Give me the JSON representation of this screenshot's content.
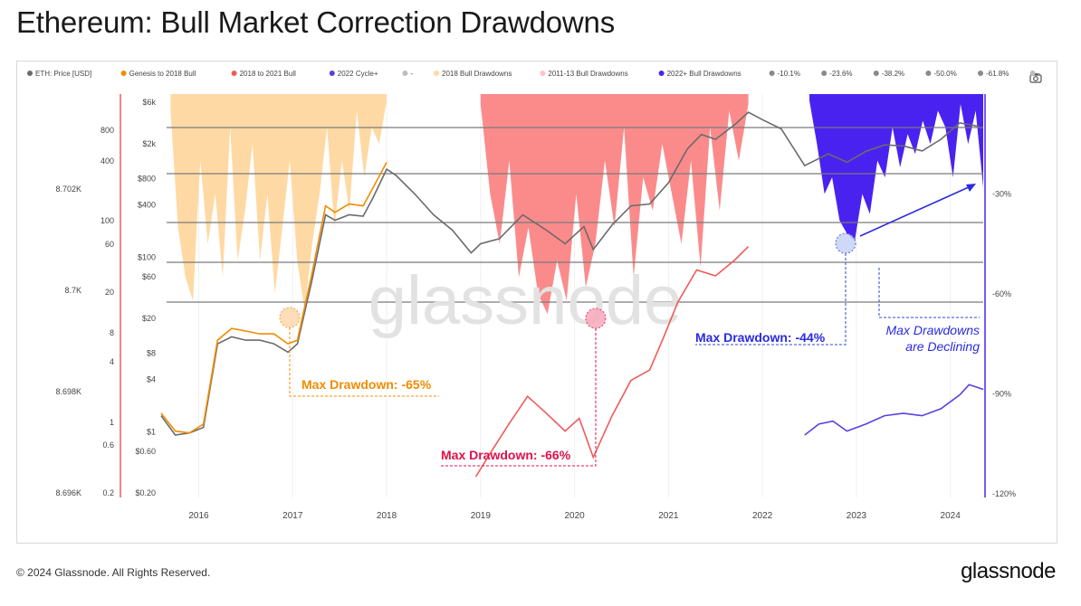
{
  "title": "Ethereum: Bull Market Correction Drawdowns",
  "footer": {
    "copyright": "© 2024 Glassnode. All Rights Reserved.",
    "logo": "glassnode"
  },
  "watermark": "glassnode",
  "icons": {
    "camera": "camera-icon"
  },
  "chart_data": {
    "type": "line",
    "title": "Ethereum: Bull Market Correction Drawdowns",
    "legend": [
      {
        "label": "ETH: Price [USD]",
        "color": "#6b6b6b"
      },
      {
        "label": "Genesis to 2018 Bull",
        "color": "#f08c00"
      },
      {
        "label": "2018 to 2021 Bull",
        "color": "#f05a5a"
      },
      {
        "label": "2022 Cycle+",
        "color": "#5b3fe0"
      },
      {
        "label": "-",
        "color": "#bdbdbd"
      },
      {
        "label": "2018 Bull Drawdowns",
        "color": "#ffd9a3"
      },
      {
        "label": "2011-13 Bull Drawdowns",
        "color": "#ffc2c2"
      },
      {
        "label": "2022+ Bull Drawdowns",
        "color": "#4a22f0"
      },
      {
        "label": "-10.1%",
        "color": "#8a8a8a"
      },
      {
        "label": "-23.6%",
        "color": "#8a8a8a"
      },
      {
        "label": "-38.2%",
        "color": "#8a8a8a"
      },
      {
        "label": "-50.0%",
        "color": "#8a8a8a"
      },
      {
        "label": "-61.8%",
        "color": "#8a8a8a"
      },
      {
        "label": "-",
        "color": "#bdbdbd"
      }
    ],
    "legend_placement": "top",
    "x_axis": {
      "ticks": [
        "2016",
        "2017",
        "2018",
        "2019",
        "2020",
        "2021",
        "2022",
        "2023",
        "2024"
      ],
      "range": [
        2015.6,
        2024.35
      ]
    },
    "price_axis": {
      "scale": "log",
      "ticks": [
        "$6k",
        "$2k",
        "$800",
        "$400",
        "$100",
        "$60",
        "$20",
        "$8",
        "$4",
        "$1",
        "$0.60",
        "$0.20"
      ],
      "range": [
        0.2,
        6000
      ]
    },
    "cycle_axis": {
      "scale": "log",
      "ticks": [
        "800",
        "400",
        "100",
        "60",
        "20",
        "8",
        "4",
        "1",
        "0.6",
        "0.2"
      ]
    },
    "extra_axis": {
      "ticks": [
        "8.702K",
        "8.7K",
        "8.698K",
        "8.696K"
      ]
    },
    "drawdown_axis": {
      "ticks": [
        "-30%",
        "-60%",
        "-90%",
        "-120%"
      ],
      "range": [
        0,
        -120
      ]
    },
    "fib_levels": [
      -10.1,
      -23.6,
      -38.2,
      -50.0,
      -61.8
    ],
    "series": [
      {
        "name": "ETH: Price [USD]",
        "x": [
          2015.6,
          2015.75,
          2015.9,
          2016.05,
          2016.2,
          2016.35,
          2016.5,
          2016.65,
          2016.8,
          2016.95,
          2017.05,
          2017.2,
          2017.35,
          2017.45,
          2017.6,
          2017.75,
          2017.85,
          2018.0,
          2018.1,
          2018.3,
          2018.5,
          2018.7,
          2018.9,
          2019.0,
          2019.2,
          2019.45,
          2019.7,
          2019.9,
          2020.1,
          2020.2,
          2020.4,
          2020.6,
          2020.8,
          2021.0,
          2021.2,
          2021.35,
          2021.5,
          2021.7,
          2021.85,
          2022.0,
          2022.2,
          2022.45,
          2022.7,
          2022.9,
          2023.1,
          2023.3,
          2023.5,
          2023.7,
          2023.9,
          2024.1,
          2024.3
        ],
        "values": [
          1.5,
          0.9,
          0.95,
          1.1,
          10,
          12,
          11,
          11,
          10,
          8,
          10,
          50,
          300,
          260,
          300,
          290,
          460,
          1000,
          850,
          520,
          300,
          200,
          110,
          140,
          160,
          300,
          200,
          140,
          220,
          120,
          230,
          380,
          400,
          700,
          1700,
          2500,
          2200,
          3200,
          4500,
          3700,
          2900,
          1100,
          1500,
          1200,
          1600,
          1900,
          1850,
          1620,
          2200,
          3400,
          3100
        ]
      },
      {
        "name": "Genesis to 2018 Bull",
        "x": [
          2015.6,
          2015.75,
          2015.9,
          2016.05,
          2016.2,
          2016.35,
          2016.5,
          2016.65,
          2016.8,
          2016.95,
          2017.05,
          2017.2,
          2017.35,
          2017.45,
          2017.6,
          2017.75,
          2017.85,
          2018.0
        ],
        "values": [
          1.6,
          1.0,
          0.95,
          1.2,
          11,
          15,
          14,
          13,
          13,
          10,
          11,
          60,
          380,
          320,
          400,
          380,
          600,
          1200
        ]
      },
      {
        "name": "2018 to 2021 Bull",
        "x": [
          2018.95,
          2019.1,
          2019.3,
          2019.5,
          2019.7,
          2019.9,
          2020.05,
          2020.2,
          2020.4,
          2020.6,
          2020.8,
          2020.95,
          2021.1,
          2021.3,
          2021.5,
          2021.7,
          2021.85
        ],
        "values": [
          0.3,
          0.55,
          1.2,
          2.5,
          1.6,
          1.0,
          1.4,
          0.5,
          1.5,
          3.8,
          5,
          12,
          30,
          70,
          60,
          90,
          130
        ]
      },
      {
        "name": "2022 Cycle+",
        "x": [
          2022.45,
          2022.6,
          2022.75,
          2022.9,
          2023.1,
          2023.3,
          2023.5,
          2023.7,
          2023.9,
          2024.1,
          2024.2,
          2024.35
        ],
        "values": [
          0.9,
          1.2,
          1.3,
          1.0,
          1.2,
          1.5,
          1.6,
          1.5,
          1.8,
          2.6,
          3.4,
          3.0
        ]
      }
    ],
    "annotations": [
      {
        "text": "Max Drawdown: -65%",
        "x": 2016.95,
        "value": -65,
        "color": "#f08c00"
      },
      {
        "text": "Max Drawdown: -66%",
        "x": 2020.2,
        "value": -66,
        "color": "#e0104a"
      },
      {
        "text": "Max Drawdown: -44%",
        "x": 2022.9,
        "value": -44,
        "color": "#2a2ae0"
      },
      {
        "text": "Max Drawdowns",
        "color": "#2a2ae0"
      },
      {
        "text": "are Declining",
        "color": "#2a2ae0"
      }
    ],
    "grid": true
  }
}
